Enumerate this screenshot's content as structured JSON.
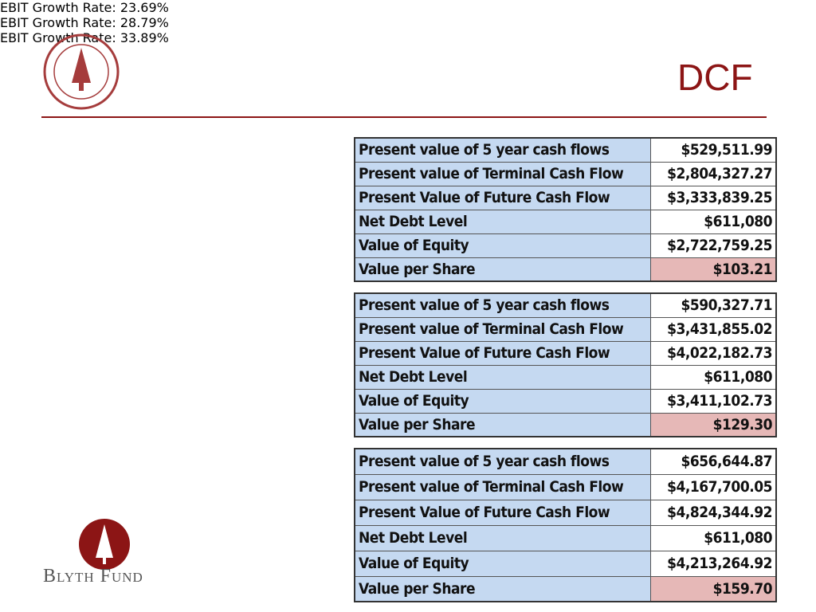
{
  "header": {
    "title": "DCF"
  },
  "logo": {
    "text": "Blyth Fund"
  },
  "scenarios": [
    {
      "label": "EBIT Growth Rate: 23.69%",
      "rows": [
        [
          "Present value of 5 year cash flows",
          "$529,511.99"
        ],
        [
          "Present value of Terminal Cash Flow",
          "$2,804,327.27"
        ],
        [
          "Present Value of Future Cash Flow",
          "$3,333,839.25"
        ],
        [
          "Net Debt Level",
          "$611,080"
        ],
        [
          "Value of Equity",
          "$2,722,759.25"
        ],
        [
          "Value per Share",
          "$103.21"
        ]
      ]
    },
    {
      "label": "EBIT Growth Rate: 28.79%",
      "rows": [
        [
          "Present value of 5 year cash flows",
          "$590,327.71"
        ],
        [
          "Present value of Terminal Cash Flow",
          "$3,431,855.02"
        ],
        [
          "Present Value of Future Cash Flow",
          "$4,022,182.73"
        ],
        [
          "Net Debt Level",
          "$611,080"
        ],
        [
          "Value of Equity",
          "$3,411,102.73"
        ],
        [
          "Value per Share",
          "$129.30"
        ]
      ]
    },
    {
      "label": "EBIT Growth Rate: 33.89%",
      "rows": [
        [
          "Present value of 5 year cash flows",
          "$656,644.87"
        ],
        [
          "Present value of Terminal Cash Flow",
          "$4,167,700.05"
        ],
        [
          "Present Value of Future Cash Flow",
          "$4,824,344.92"
        ],
        [
          "Net Debt Level",
          "$611,080"
        ],
        [
          "Value of Equity",
          "$4,213,264.92"
        ],
        [
          "Value per Share",
          "$159.70"
        ]
      ]
    }
  ]
}
